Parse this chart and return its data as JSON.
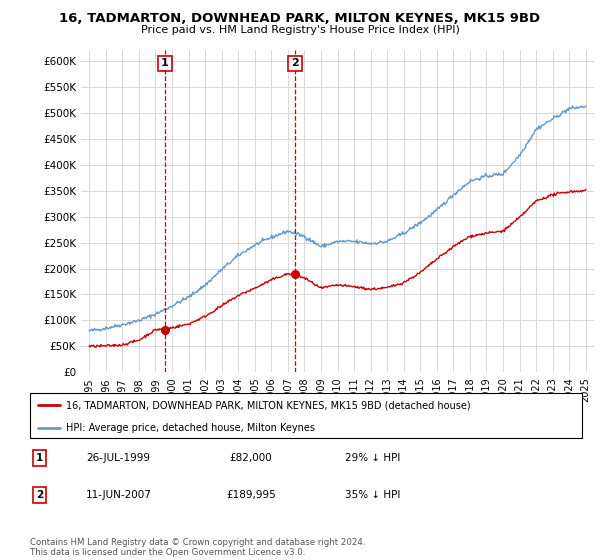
{
  "title": "16, TADMARTON, DOWNHEAD PARK, MILTON KEYNES, MK15 9BD",
  "subtitle": "Price paid vs. HM Land Registry's House Price Index (HPI)",
  "legend_line1": "16, TADMARTON, DOWNHEAD PARK, MILTON KEYNES, MK15 9BD (detached house)",
  "legend_line2": "HPI: Average price, detached house, Milton Keynes",
  "annotation1_label": "1",
  "annotation1_date": "26-JUL-1999",
  "annotation1_price": "£82,000",
  "annotation1_hpi": "29% ↓ HPI",
  "annotation2_label": "2",
  "annotation2_date": "11-JUN-2007",
  "annotation2_price": "£189,995",
  "annotation2_hpi": "35% ↓ HPI",
  "footer": "Contains HM Land Registry data © Crown copyright and database right 2024.\nThis data is licensed under the Open Government Licence v3.0.",
  "hpi_color": "#6699cc",
  "price_color": "#cc0000",
  "annotation_color": "#cc0000",
  "ylim": [
    0,
    620000
  ],
  "yticks": [
    0,
    50000,
    100000,
    150000,
    200000,
    250000,
    300000,
    350000,
    400000,
    450000,
    500000,
    550000,
    600000
  ],
  "xlim_start": 1994.5,
  "xlim_end": 2025.5,
  "marker1_x": 1999.57,
  "marker1_y": 82000,
  "marker2_x": 2007.44,
  "marker2_y": 189995,
  "ann1_vline_x": 1999.57,
  "ann2_vline_x": 2007.44
}
